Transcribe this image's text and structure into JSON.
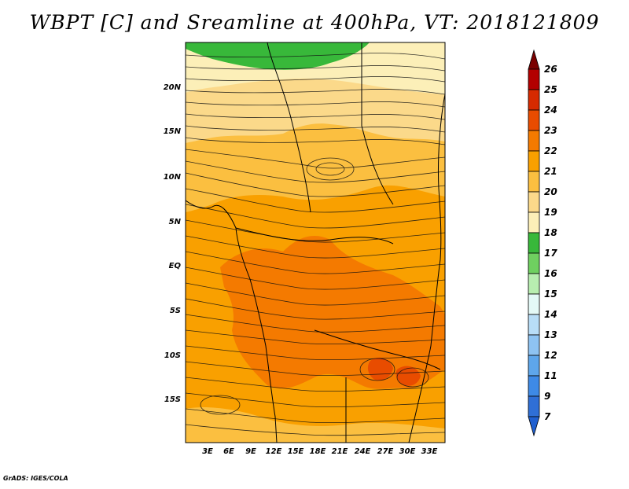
{
  "title": "WBPT [C] and Sreamline at 400hPa, VT: 2018121809",
  "footer": "GrADS: IGES/COLA",
  "lat_labels": [
    "20N",
    "15N",
    "10N",
    "5N",
    "EQ",
    "5S",
    "10S",
    "15S"
  ],
  "lon_labels": [
    "3E",
    "6E",
    "9E",
    "12E",
    "15E",
    "18E",
    "21E",
    "24E",
    "27E",
    "30E",
    "33E"
  ],
  "colorbar": {
    "labels": [
      "26",
      "25",
      "24",
      "23",
      "22",
      "21",
      "20",
      "19",
      "18",
      "17",
      "16",
      "15",
      "14",
      "13",
      "12",
      "11",
      "9",
      "7"
    ],
    "colors": [
      "#7a0000",
      "#b30000",
      "#d62a00",
      "#e84c00",
      "#f47a00",
      "#f9a000",
      "#fbbf40",
      "#fbd98a",
      "#fcefb8",
      "#38b83a",
      "#6fd060",
      "#b8eeb0",
      "#e4f9f7",
      "#b8ddf7",
      "#8ec3f2",
      "#5ea6eb",
      "#3e8ae6",
      "#2f6fd6",
      "#2060d0"
    ]
  },
  "chart_data": {
    "type": "heatmap",
    "variable": "WBPT [C]",
    "level": "400hPa",
    "valid_time": "2018121809",
    "lon_range": [
      "1E",
      "35E"
    ],
    "lat_range": [
      "19S",
      "25N"
    ],
    "colorbar_levels": [
      7,
      9,
      11,
      12,
      13,
      14,
      15,
      16,
      17,
      18,
      19,
      20,
      21,
      22,
      23,
      24,
      25,
      26
    ],
    "features": [
      "streamlines",
      "coastlines",
      "country borders"
    ]
  }
}
